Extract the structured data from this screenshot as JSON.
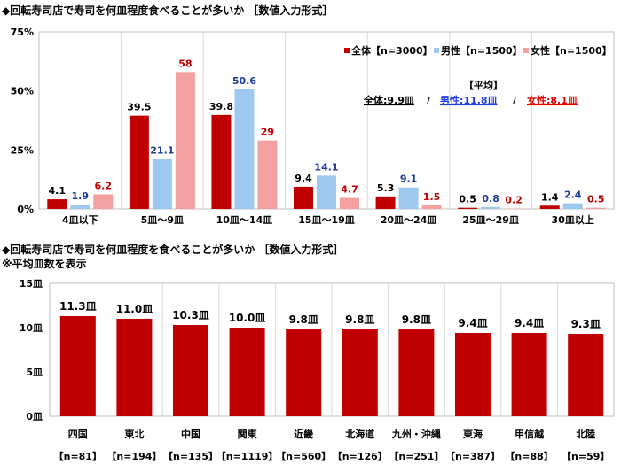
{
  "colors": {
    "overall": "#c00000",
    "male": "#9dc8f0",
    "female": "#f4a0a0",
    "male_text": "#1f3a9e",
    "female_text": "#c00000",
    "grid": "#d9d9d9"
  },
  "chart_data": [
    {
      "type": "bar",
      "title": "◆回転寿司店で寿司を何皿程度食べることが多いか ［数値入力形式］",
      "categories": [
        "4皿以下",
        "5皿～9皿",
        "10皿～14皿",
        "15皿～19皿",
        "20皿～24皿",
        "25皿～29皿",
        "30皿以上"
      ],
      "series": [
        {
          "name": "全体【n=3000】",
          "values": [
            4.1,
            39.5,
            39.8,
            9.4,
            5.3,
            0.5,
            1.4
          ]
        },
        {
          "name": "男性【n=1500】",
          "values": [
            1.9,
            21.1,
            50.6,
            14.1,
            9.1,
            0.8,
            2.4
          ]
        },
        {
          "name": "女性【n=1500】",
          "values": [
            6.2,
            58.0,
            29.0,
            4.7,
            1.5,
            0.2,
            0.5
          ]
        }
      ],
      "yticks": [
        "0%",
        "25%",
        "50%",
        "75%"
      ],
      "ylim": [
        0,
        75
      ],
      "legend_position": "top-right",
      "annotation": {
        "heading": "【平均】",
        "overall": "全体:9.9皿",
        "male": "男性:11.8皿",
        "female": "女性:8.1皿",
        "sep": "/"
      }
    },
    {
      "type": "bar",
      "title": "◆回転寿司店で寿司を何皿程度を食べることが多いか ［数値入力形式］",
      "subtitle": "※平均皿数を表示",
      "categories": [
        "四国",
        "東北",
        "中国",
        "関東",
        "近畿",
        "北海道",
        "九州・沖縄",
        "東海",
        "甲信越",
        "北陸"
      ],
      "n_labels": [
        "【n=81】",
        "【n=194】",
        "【n=135】",
        "【n=1119】",
        "【n=560】",
        "【n=126】",
        "【n=251】",
        "【n=387】",
        "【n=88】",
        "【n=59】"
      ],
      "values": [
        11.3,
        11.0,
        10.3,
        10.0,
        9.8,
        9.8,
        9.8,
        9.4,
        9.4,
        9.3
      ],
      "value_labels": [
        "11.3皿",
        "11.0皿",
        "10.3皿",
        "10.0皿",
        "9.8皿",
        "9.8皿",
        "9.8皿",
        "9.4皿",
        "9.4皿",
        "9.3皿"
      ],
      "yticks": [
        "0皿",
        "5皿",
        "10皿",
        "15皿"
      ],
      "ylim": [
        0,
        15
      ]
    }
  ]
}
